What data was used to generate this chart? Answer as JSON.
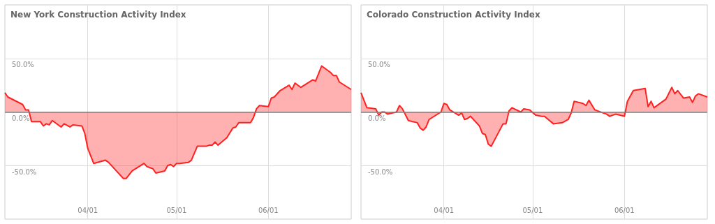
{
  "chart_data": [
    {
      "type": "area",
      "title": "New York Construction Activity Index",
      "xlim": [
        "--03-04",
        "--06-29"
      ],
      "ylim": [
        -100,
        100
      ],
      "xticks": [
        {
          "value": "--04-01",
          "label": "04/01"
        },
        {
          "value": "--05-01",
          "label": "05/01"
        },
        {
          "value": "--06-01",
          "label": "06/01"
        }
      ],
      "yticks": [
        {
          "value": 50,
          "label": "50.0%"
        },
        {
          "value": 0,
          "label": "0.0%"
        },
        {
          "value": -50,
          "label": "-50.0%"
        }
      ],
      "grid": true,
      "marker": "none",
      "line_style": "solid",
      "ref_lines": [
        {
          "axis": "y",
          "value": 0,
          "color": "#808080"
        }
      ],
      "series": [
        {
          "color": "#ff2020",
          "x": [
            "--03-04",
            "--03-05",
            "--03-10",
            "--03-11",
            "--03-12",
            "--03-13",
            "--03-16",
            "--03-17",
            "--03-18",
            "--03-19",
            "--03-20",
            "--03-23",
            "--03-24",
            "--03-26",
            "--03-27",
            "--03-30",
            "--03-31",
            "--04-01",
            "--04-03",
            "--04-07",
            "--04-08",
            "--04-13",
            "--04-14",
            "--04-16",
            "--04-20",
            "--04-21",
            "--04-23",
            "--04-24",
            "--04-27",
            "--04-28",
            "--04-29",
            "--04-30",
            "--05-01",
            "--05-02",
            "--05-05",
            "--05-06",
            "--05-08",
            "--05-11",
            "--05-12",
            "--05-13",
            "--05-14",
            "--05-15",
            "--05-18",
            "--05-20",
            "--05-21",
            "--05-22",
            "--05-26",
            "--05-27",
            "--05-28",
            "--05-29",
            "--06-01",
            "--06-02",
            "--06-03",
            "--06-05",
            "--06-08",
            "--06-09",
            "--06-10",
            "--06-12",
            "--06-16",
            "--06-17",
            "--06-19",
            "--06-22",
            "--06-23",
            "--06-24",
            "--06-25",
            "--06-29"
          ],
          "values": [
            18,
            14,
            7,
            2,
            2,
            -9,
            -9,
            -13,
            -11,
            -12,
            -8,
            -14,
            -11,
            -14,
            -12,
            -13,
            -20,
            -34,
            -48,
            -45,
            -47,
            -62,
            -62,
            -55,
            -48,
            -51,
            -53,
            -57,
            -55,
            -50,
            -49,
            -51,
            -48,
            -48,
            -47,
            -45,
            -32,
            -32,
            -31,
            -31,
            -28,
            -31,
            -24,
            -15,
            -14,
            -10,
            -10,
            -5,
            3,
            6,
            5,
            13,
            14,
            20,
            25,
            21,
            27,
            23,
            30,
            29,
            43,
            37,
            34,
            34,
            28,
            21
          ]
        }
      ]
    },
    {
      "type": "area",
      "title": "Colorado Construction Activity Index",
      "xlim": [
        "--03-04",
        "--06-29"
      ],
      "ylim": [
        -100,
        100
      ],
      "xticks": [
        {
          "value": "--04-01",
          "label": "04/01"
        },
        {
          "value": "--05-01",
          "label": "05/01"
        },
        {
          "value": "--06-01",
          "label": "06/01"
        }
      ],
      "yticks": [
        {
          "value": 50,
          "label": "50.0%"
        },
        {
          "value": 0,
          "label": "0.0%"
        },
        {
          "value": -50,
          "label": "-50.0%"
        }
      ],
      "grid": true,
      "marker": "none",
      "line_style": "solid",
      "ref_lines": [
        {
          "axis": "y",
          "value": 0,
          "color": "#808080"
        }
      ],
      "series": [
        {
          "color": "#ff2020",
          "x": [
            "--03-04",
            "--03-06",
            "--03-09",
            "--03-10",
            "--03-11",
            "--03-12",
            "--03-13",
            "--03-16",
            "--03-17",
            "--03-18",
            "--03-20",
            "--03-23",
            "--03-24",
            "--03-25",
            "--03-26",
            "--03-27",
            "--03-31",
            "--04-01",
            "--04-02",
            "--04-03",
            "--04-06",
            "--04-07",
            "--04-08",
            "--04-09",
            "--04-10",
            "--04-13",
            "--04-14",
            "--04-15",
            "--04-16",
            "--04-17",
            "--04-21",
            "--04-22",
            "--04-23",
            "--04-24",
            "--04-27",
            "--04-28",
            "--04-30",
            "--05-02",
            "--05-04",
            "--05-05",
            "--05-08",
            "--05-11",
            "--05-13",
            "--05-14",
            "--05-15",
            "--05-18",
            "--05-19",
            "--05-20",
            "--05-22",
            "--05-26",
            "--05-27",
            "--05-29",
            "--06-01",
            "--06-02",
            "--06-04",
            "--06-08",
            "--06-09",
            "--06-10",
            "--06-11",
            "--06-15",
            "--06-17",
            "--06-18",
            "--06-19",
            "--06-21",
            "--06-23",
            "--06-24",
            "--06-25",
            "--06-26",
            "--06-29"
          ],
          "values": [
            18,
            4,
            3,
            -3,
            0,
            0,
            -2,
            0,
            6,
            3,
            -8,
            -10,
            -15,
            -17,
            -14,
            -7,
            0,
            8,
            7,
            2,
            -3,
            -1,
            -7,
            -6,
            -4,
            -13,
            -20,
            -21,
            -30,
            -32,
            -11,
            -11,
            1,
            4,
            0,
            3,
            2,
            -3,
            -4,
            -4,
            -11,
            -10,
            -7,
            -1,
            10,
            8,
            6,
            11,
            2,
            -2,
            -4,
            -2,
            -4,
            10,
            20,
            22,
            5,
            10,
            4,
            12,
            23,
            17,
            20,
            13,
            14,
            9,
            15,
            17,
            14
          ]
        }
      ]
    }
  ]
}
